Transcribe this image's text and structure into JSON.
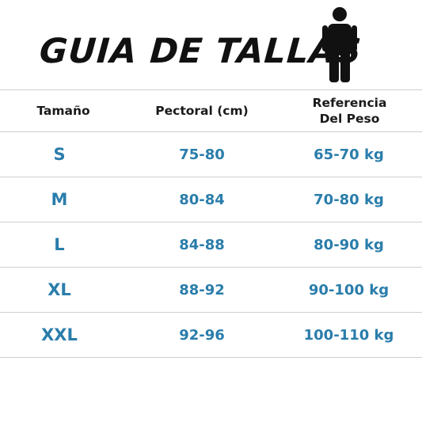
{
  "title": "GUIA DE TALLAS",
  "icons": {
    "person": "person-icon"
  },
  "colors": {
    "value_text": "#2a7dab",
    "header_text": "#1a1a1a",
    "divider": "#cfcfcf"
  },
  "table": {
    "headers": {
      "size": "Tamaño",
      "chest": "Pectoral (cm)",
      "weight_line1": "Referencia",
      "weight_line2": "Del Peso"
    },
    "rows": [
      {
        "size": "S",
        "chest": "75-80",
        "weight": "65-70 kg"
      },
      {
        "size": "M",
        "chest": "80-84",
        "weight": "70-80 kg"
      },
      {
        "size": "L",
        "chest": "84-88",
        "weight": "80-90 kg"
      },
      {
        "size": "XL",
        "chest": "88-92",
        "weight": "90-100 kg"
      },
      {
        "size": "XXL",
        "chest": "92-96",
        "weight": "100-110 kg"
      }
    ]
  }
}
